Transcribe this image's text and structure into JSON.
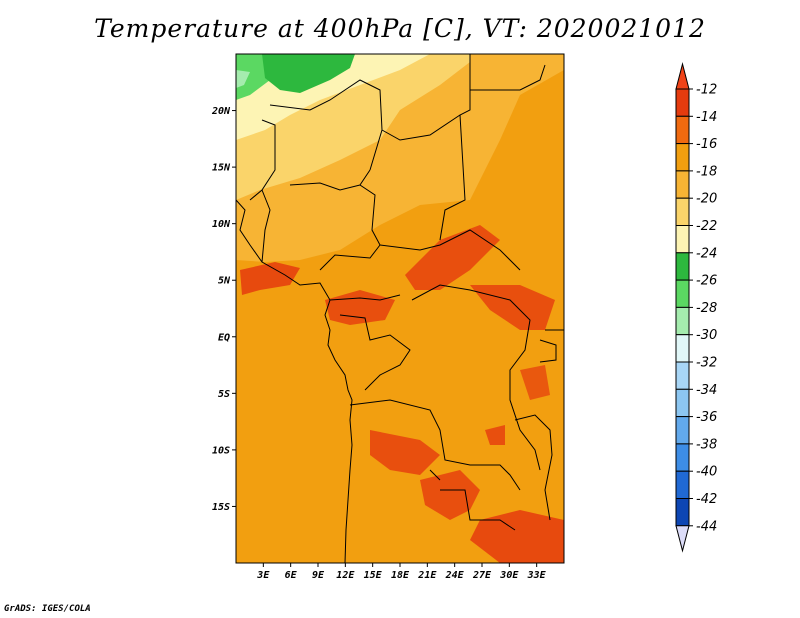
{
  "title": "Temperature at 400hPa [C], VT: 2020021012",
  "credit": "GrADS: IGES/COLA",
  "map": {
    "lon_range": [
      0,
      36
    ],
    "lat_range": [
      -20,
      25
    ],
    "lat_ticks": [
      {
        "value": 20,
        "label": "20N"
      },
      {
        "value": 15,
        "label": "15N"
      },
      {
        "value": 10,
        "label": "10N"
      },
      {
        "value": 5,
        "label": "5N"
      },
      {
        "value": 0,
        "label": "EQ"
      },
      {
        "value": -5,
        "label": "5S"
      },
      {
        "value": -10,
        "label": "10S"
      },
      {
        "value": -15,
        "label": "15S"
      }
    ],
    "lon_ticks": [
      {
        "value": 3,
        "label": "3E"
      },
      {
        "value": 6,
        "label": "6E"
      },
      {
        "value": 9,
        "label": "9E"
      },
      {
        "value": 12,
        "label": "12E"
      },
      {
        "value": 15,
        "label": "15E"
      },
      {
        "value": 18,
        "label": "18E"
      },
      {
        "value": 21,
        "label": "21E"
      },
      {
        "value": 24,
        "label": "24E"
      },
      {
        "value": 27,
        "label": "27E"
      },
      {
        "value": 30,
        "label": "30E"
      },
      {
        "value": 33,
        "label": "33E"
      }
    ]
  },
  "colorbar": {
    "labels": [
      "-12",
      "-14",
      "-16",
      "-18",
      "-20",
      "-22",
      "-24",
      "-26",
      "-28",
      "-30",
      "-32",
      "-34",
      "-36",
      "-38",
      "-40",
      "-42",
      "-44"
    ],
    "colors": [
      "#e53b0e",
      "#f06a10",
      "#f29f10",
      "#f7b434",
      "#fad46a",
      "#fdf4b4",
      "#2db83e",
      "#5bd862",
      "#a5ecae",
      "#e1f7f8",
      "#a8d6f6",
      "#8cc6f1",
      "#62a9ec",
      "#3d8de6",
      "#2069d4",
      "#0d46b4",
      "#0c1a78"
    ],
    "top_color": "#f04318",
    "bottom_color": "#dcdcf8"
  }
}
